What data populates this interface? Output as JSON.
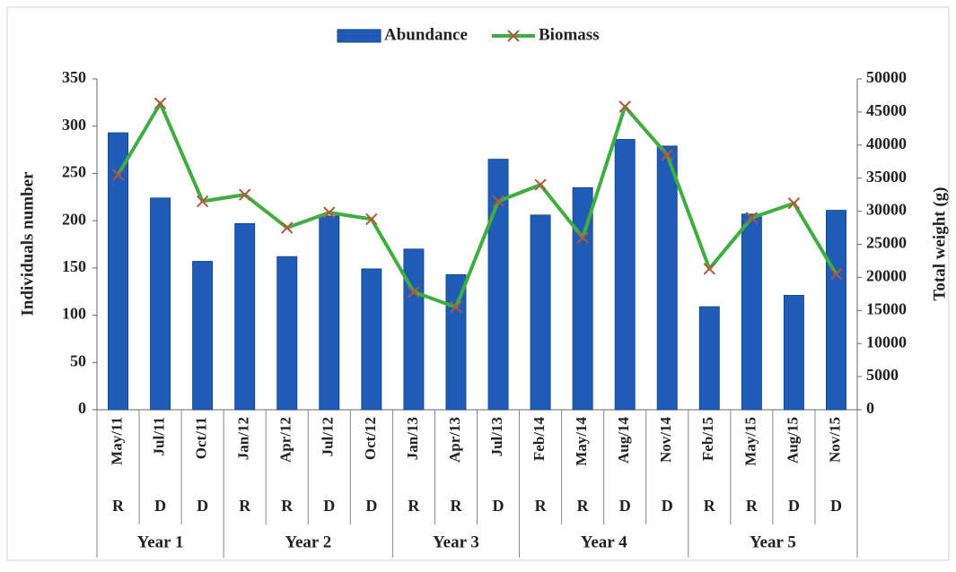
{
  "chart_data": {
    "type": "bar",
    "categories": [
      "May/11",
      "Jul/11",
      "Oct/11",
      "Jan/12",
      "Apr/12",
      "Jul/12",
      "Oct/12",
      "Jan/13",
      "Apr/13",
      "Jul/13",
      "Feb/14",
      "May/14",
      "Aug/14",
      "Nov/14",
      "Feb/15",
      "May/15",
      "Aug/15",
      "Nov/15"
    ],
    "seasons": [
      "R",
      "D",
      "D",
      "R",
      "R",
      "D",
      "D",
      "R",
      "R",
      "D",
      "R",
      "R",
      "D",
      "D",
      "R",
      "R",
      "D",
      "D"
    ],
    "year_groups": [
      {
        "label": "Year 1",
        "count": 3
      },
      {
        "label": "Year 2",
        "count": 4
      },
      {
        "label": "Year 3",
        "count": 3
      },
      {
        "label": "Year 4",
        "count": 4
      },
      {
        "label": "Year 5",
        "count": 4
      }
    ],
    "series": [
      {
        "name": "Abundance",
        "type": "bar",
        "color": "#1f5cb8",
        "values": [
          293,
          224,
          157,
          197,
          162,
          205,
          149,
          170,
          143,
          265,
          206,
          235,
          286,
          279,
          109,
          207,
          121,
          211
        ]
      },
      {
        "name": "Biomass",
        "type": "line",
        "axis": "y2",
        "color": "#3fae3f",
        "marker_color": "#b5553a",
        "values": [
          35500,
          46300,
          31500,
          32500,
          27500,
          29800,
          28800,
          17800,
          15500,
          31500,
          34000,
          26000,
          45800,
          38500,
          21300,
          29000,
          31200,
          20500
        ]
      }
    ],
    "ylabel": "Individuals number",
    "y2label": "Total weight (g)",
    "ylim": [
      0,
      350
    ],
    "yticks": [
      0,
      50,
      100,
      150,
      200,
      250,
      300,
      350
    ],
    "y2lim": [
      0,
      50000
    ],
    "y2ticks": [
      0,
      5000,
      10000,
      15000,
      20000,
      25000,
      30000,
      35000,
      40000,
      45000,
      50000
    ],
    "legend": "top"
  }
}
